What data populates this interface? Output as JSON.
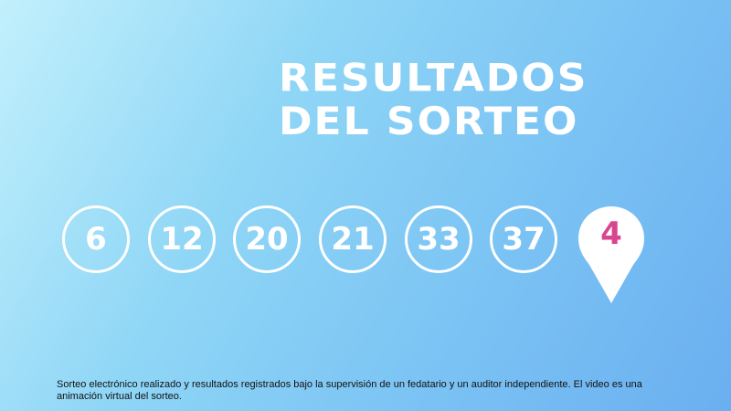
{
  "title": {
    "line1": "RESULTADOS",
    "line2": "DEL SORTEO"
  },
  "numbers": [
    "6",
    "12",
    "20",
    "21",
    "33",
    "37"
  ],
  "bonus": {
    "value": "4",
    "color": "#d9458f"
  },
  "colors": {
    "background_start": "#c2f0fc",
    "background_end": "#6aaff0",
    "ball": "#ffffff"
  },
  "footnote": "Sorteo electrónico realizado y resultados registrados bajo la supervisión de un fedatario y un auditor independiente. El video es una animación virtual del sorteo."
}
